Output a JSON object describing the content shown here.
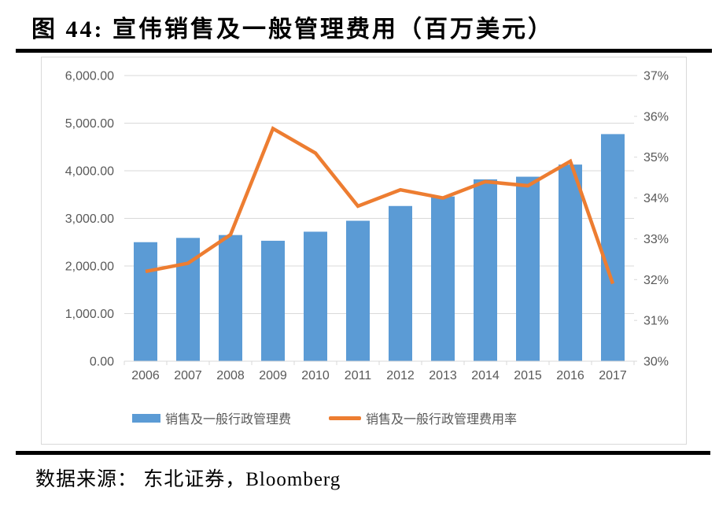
{
  "figure": {
    "title": "图 44: 宣伟销售及一般管理费用（百万美元）",
    "source": "数据来源： 东北证券，Bloomberg"
  },
  "chart_data": {
    "type": "combo",
    "title": "宣伟销售及一般管理费用（百万美元）",
    "categories": [
      "2006",
      "2007",
      "2008",
      "2009",
      "2010",
      "2011",
      "2012",
      "2013",
      "2014",
      "2015",
      "2016",
      "2017"
    ],
    "series": [
      {
        "name": "销售及一般行政管理费",
        "type": "bar",
        "axis": "left",
        "color": "#5B9BD5",
        "values": [
          2500,
          2590,
          2650,
          2530,
          2720,
          2950,
          3260,
          3460,
          3820,
          3875,
          4130,
          4770
        ]
      },
      {
        "name": "销售及一般行政管理费用率",
        "type": "line",
        "axis": "right",
        "color": "#ED7D31",
        "values": [
          32.2,
          32.4,
          33.1,
          35.7,
          35.1,
          33.8,
          34.2,
          34.0,
          34.4,
          34.3,
          34.9,
          31.9
        ]
      }
    ],
    "left_axis": {
      "min": 0,
      "max": 6000,
      "step": 1000,
      "labels": [
        "0.00",
        "1,000.00",
        "2,000.00",
        "3,000.00",
        "4,000.00",
        "5,000.00",
        "6,000.00"
      ]
    },
    "right_axis": {
      "min": 30,
      "max": 37,
      "step": 1,
      "labels": [
        "30%",
        "31%",
        "32%",
        "33%",
        "34%",
        "35%",
        "36%",
        "37%"
      ]
    },
    "grid": true,
    "grid_color": "#D9D9D9",
    "label_color": "#595959",
    "legend_position": "bottom"
  }
}
